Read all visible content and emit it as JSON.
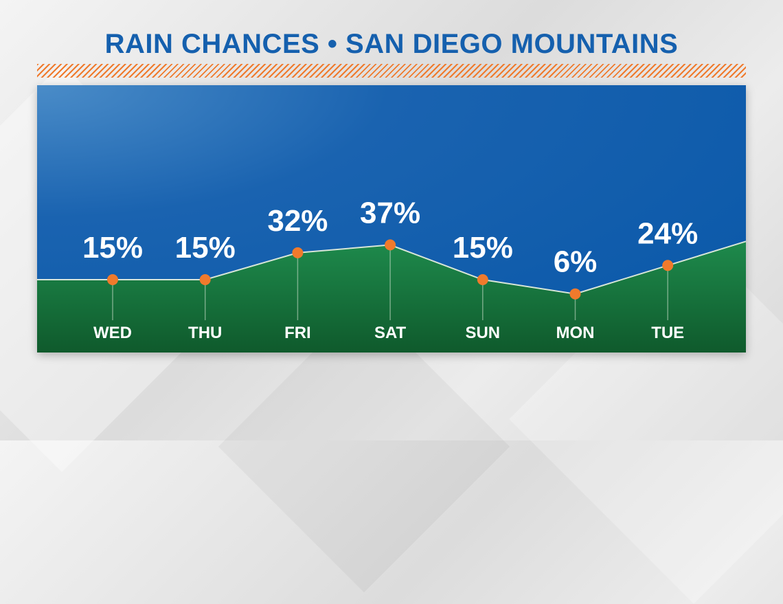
{
  "title": "RAIN CHANCES • SAN DIEGO MOUNTAINS",
  "colors": {
    "title": "#1560ae",
    "accent_hatch": "#f07a2c",
    "sky": "#0857a8",
    "ground_top": "#1e8a4c",
    "ground_bottom": "#0f5a2c",
    "line": "#d8e6d8",
    "marker": "#f07a2c"
  },
  "chart_data": {
    "type": "area",
    "categories": [
      "WED",
      "THU",
      "FRI",
      "SAT",
      "SUN",
      "MON",
      "TUE"
    ],
    "values": [
      15,
      15,
      32,
      37,
      15,
      6,
      24
    ],
    "labels": [
      "15%",
      "15%",
      "32%",
      "37%",
      "15%",
      "6%",
      "24%"
    ],
    "unit": "%",
    "grid": false
  }
}
